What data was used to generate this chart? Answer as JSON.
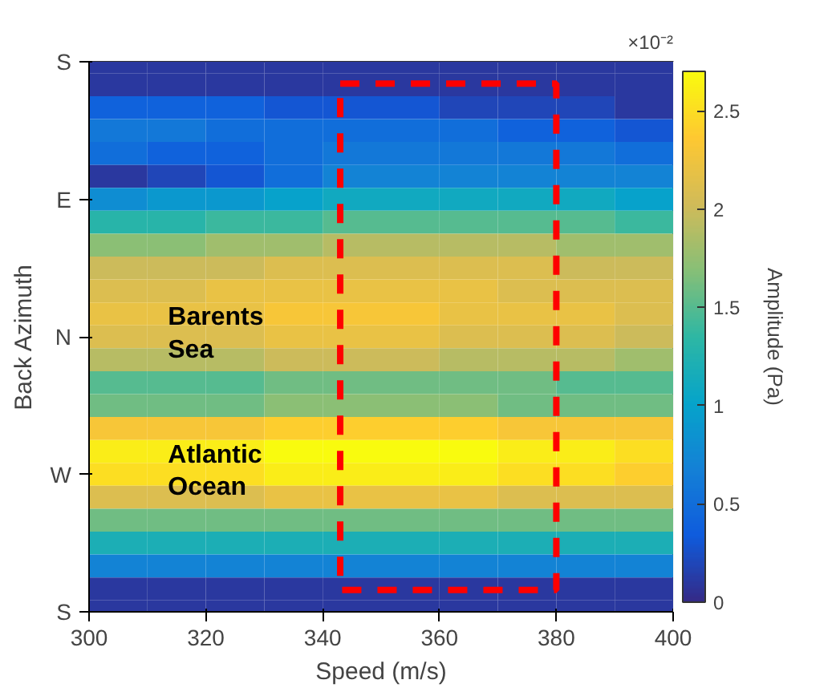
{
  "chart_data": {
    "type": "heatmap",
    "xlabel": "Speed (m/s)",
    "ylabel": "Back Azimuth",
    "clabel": "Amplitude (Pa)",
    "x": [
      305,
      315,
      325,
      335,
      345,
      355,
      365,
      375,
      385,
      395
    ],
    "xlim": [
      300,
      400
    ],
    "xticks": [
      300,
      320,
      340,
      360,
      380,
      400
    ],
    "y_categories": [
      "S",
      null,
      null,
      null,
      null,
      null,
      "E",
      null,
      null,
      null,
      null,
      null,
      "N",
      null,
      null,
      null,
      null,
      null,
      "W",
      null,
      null,
      null,
      null,
      null,
      "S"
    ],
    "clim": [
      0,
      2.7
    ],
    "cticks": [
      0,
      0.5,
      1,
      1.5,
      2,
      2.5
    ],
    "cells": [
      [
        0.1,
        0.1,
        0.1,
        0.1,
        0.1,
        0.1,
        0.1,
        0.1,
        0.1,
        0.1
      ],
      [
        0.1,
        0.1,
        0.1,
        0.1,
        0.1,
        0.1,
        0.1,
        0.1,
        0.1,
        0.1
      ],
      [
        0.4,
        0.4,
        0.4,
        0.3,
        0.3,
        0.3,
        0.2,
        0.2,
        0.2,
        0.1
      ],
      [
        0.6,
        0.6,
        0.5,
        0.5,
        0.5,
        0.5,
        0.5,
        0.4,
        0.4,
        0.3
      ],
      [
        0.5,
        0.4,
        0.4,
        0.5,
        0.6,
        0.6,
        0.6,
        0.6,
        0.6,
        0.5
      ],
      [
        0.1,
        0.2,
        0.3,
        0.5,
        0.7,
        0.7,
        0.7,
        0.7,
        0.7,
        0.7
      ],
      [
        0.8,
        0.9,
        0.9,
        1.0,
        1.1,
        1.1,
        1.1,
        1.1,
        1.1,
        1.0
      ],
      [
        1.3,
        1.3,
        1.4,
        1.4,
        1.5,
        1.5,
        1.5,
        1.5,
        1.5,
        1.4
      ],
      [
        1.7,
        1.7,
        1.8,
        1.8,
        1.9,
        1.9,
        1.9,
        1.9,
        1.8,
        1.8
      ],
      [
        2.0,
        2.0,
        2.0,
        2.1,
        2.1,
        2.1,
        2.1,
        2.1,
        2.0,
        2.0
      ],
      [
        2.1,
        2.1,
        2.2,
        2.2,
        2.2,
        2.2,
        2.2,
        2.1,
        2.1,
        2.1
      ],
      [
        2.2,
        2.2,
        2.2,
        2.3,
        2.3,
        2.3,
        2.2,
        2.2,
        2.2,
        2.1
      ],
      [
        2.1,
        2.1,
        2.1,
        2.2,
        2.2,
        2.2,
        2.1,
        2.1,
        2.1,
        2.0
      ],
      [
        1.9,
        1.9,
        1.9,
        2.0,
        2.0,
        2.0,
        1.9,
        1.9,
        1.9,
        1.8
      ],
      [
        1.5,
        1.5,
        1.5,
        1.6,
        1.6,
        1.6,
        1.6,
        1.6,
        1.5,
        1.5
      ],
      [
        1.6,
        1.6,
        1.6,
        1.7,
        1.7,
        1.7,
        1.7,
        1.6,
        1.6,
        1.6
      ],
      [
        2.3,
        2.3,
        2.3,
        2.4,
        2.4,
        2.4,
        2.4,
        2.3,
        2.3,
        2.3
      ],
      [
        2.6,
        2.6,
        2.6,
        2.7,
        2.7,
        2.7,
        2.7,
        2.6,
        2.6,
        2.5
      ],
      [
        2.5,
        2.5,
        2.5,
        2.6,
        2.6,
        2.6,
        2.6,
        2.5,
        2.5,
        2.4
      ],
      [
        2.1,
        2.1,
        2.1,
        2.2,
        2.2,
        2.2,
        2.2,
        2.1,
        2.1,
        2.1
      ],
      [
        1.6,
        1.6,
        1.6,
        1.6,
        1.6,
        1.6,
        1.6,
        1.6,
        1.6,
        1.6
      ],
      [
        1.2,
        1.2,
        1.2,
        1.2,
        1.2,
        1.2,
        1.2,
        1.2,
        1.2,
        1.2
      ],
      [
        0.7,
        0.7,
        0.7,
        0.7,
        0.7,
        0.7,
        0.7,
        0.7,
        0.7,
        0.7
      ],
      [
        0.1,
        0.1,
        0.1,
        0.1,
        0.1,
        0.1,
        0.1,
        0.1,
        0.1,
        0.1
      ],
      [
        0.1,
        0.1,
        0.1,
        0.1,
        0.1,
        0.1,
        0.1,
        0.1,
        0.1,
        0.1
      ]
    ],
    "annotations": [
      "Barents\nSea",
      "Atlantic\nOcean",
      "×10⁻²"
    ]
  }
}
